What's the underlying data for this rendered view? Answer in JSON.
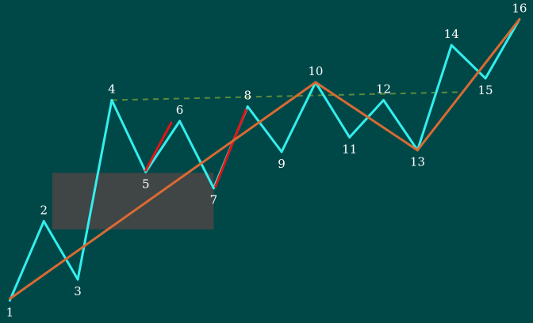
{
  "chart_data": {
    "type": "line",
    "title": "",
    "xlabel": "",
    "ylabel": "",
    "grid": false,
    "legend": "none",
    "points": [
      {
        "label": "1",
        "x": 1,
        "y": 0
      },
      {
        "label": "2",
        "x": 2,
        "y": 98
      },
      {
        "label": "3",
        "x": 3,
        "y": 26
      },
      {
        "label": "4",
        "x": 4,
        "y": 248
      },
      {
        "label": "5",
        "x": 5,
        "y": 159
      },
      {
        "label": "6",
        "x": 6,
        "y": 222
      },
      {
        "label": "7",
        "x": 7,
        "y": 139
      },
      {
        "label": "8",
        "x": 8,
        "y": 240
      },
      {
        "label": "9",
        "x": 9,
        "y": 184
      },
      {
        "label": "10",
        "x": 10,
        "y": 270
      },
      {
        "label": "11",
        "x": 11,
        "y": 202
      },
      {
        "label": "12",
        "x": 12,
        "y": 248
      },
      {
        "label": "13",
        "x": 13,
        "y": 186
      },
      {
        "label": "14",
        "x": 14,
        "y": 316
      },
      {
        "label": "15",
        "x": 15,
        "y": 275
      },
      {
        "label": "16",
        "x": 16,
        "y": 348
      }
    ],
    "trend_line": [
      {
        "x": 1,
        "y": 2
      },
      {
        "x": 10,
        "y": 270
      },
      {
        "x": 13,
        "y": 186
      },
      {
        "x": 16,
        "y": 348
      }
    ],
    "resistance_line": [
      {
        "x": 4,
        "y": 248
      },
      {
        "x": 14.3,
        "y": 258
      }
    ],
    "highlight_segments": [
      {
        "from": {
          "x": 5.0,
          "y": 161
        },
        "to": {
          "x": 5.75,
          "y": 220
        }
      },
      {
        "from": {
          "x": 7.05,
          "y": 141
        },
        "to": {
          "x": 7.95,
          "y": 236
        }
      }
    ],
    "zone": {
      "x": [
        2.25,
        7.0
      ],
      "y": [
        88,
        158
      ]
    },
    "axis": {
      "x_range": [
        0.71,
        16.4
      ],
      "y_range": [
        -28,
        372
      ]
    },
    "colors": {
      "background": "#004848",
      "zigzag": "#33eeee",
      "trend": "#d86a33",
      "highlight": "#e61414",
      "resistance": "#5a8a3a",
      "zone": "#454545",
      "label": "#ffffff"
    }
  }
}
